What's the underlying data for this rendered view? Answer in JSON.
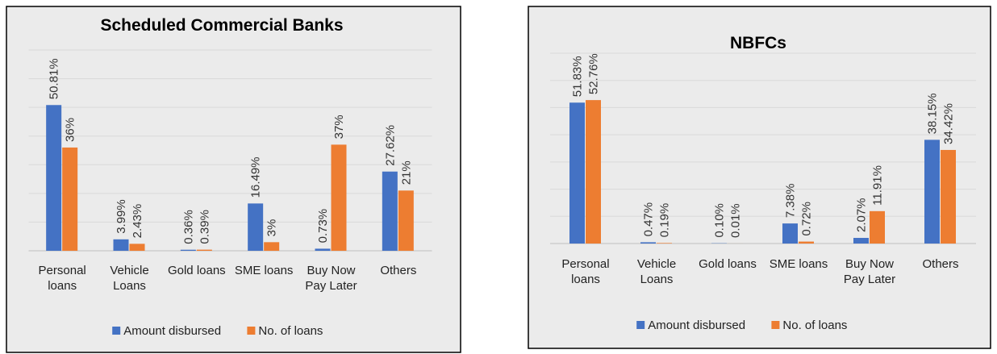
{
  "chart_data": [
    {
      "type": "bar",
      "title": "Scheduled Commercial Banks",
      "categories": [
        "Personal loans",
        "Vehicle Loans",
        "Gold loans",
        "SME loans",
        "Buy Now Pay Later",
        "Others"
      ],
      "series": [
        {
          "name": "Amount disbursed",
          "color": "#4472c4",
          "values": [
            50.81,
            3.99,
            0.36,
            16.49,
            0.73,
            27.62
          ],
          "value_labels": [
            "50.81%",
            "3.99%",
            "0.36%",
            "16.49%",
            "0.73%",
            "27.62%"
          ]
        },
        {
          "name": "No. of loans",
          "color": "#ed7d31",
          "values": [
            36,
            2.43,
            0.39,
            3,
            37,
            21
          ],
          "value_labels": [
            "36%",
            "2.43%",
            "0.39%",
            "3%",
            "37%",
            "21%"
          ]
        }
      ],
      "ylim": [
        0,
        70
      ],
      "yticks": [
        0,
        10,
        20,
        30,
        40,
        50,
        60,
        70
      ],
      "grid": true,
      "legend": "bottom"
    },
    {
      "type": "bar",
      "title": "NBFCs",
      "categories": [
        "Personal loans",
        "Vehicle Loans",
        "Gold loans",
        "SME loans",
        "Buy Now Pay Later",
        "Others"
      ],
      "series": [
        {
          "name": "Amount disbursed",
          "color": "#4472c4",
          "values": [
            51.83,
            0.47,
            0.1,
            7.38,
            2.07,
            38.15
          ],
          "value_labels": [
            "51.83%",
            "0.47%",
            "0.10%",
            "7.38%",
            "2.07%",
            "38.15%"
          ]
        },
        {
          "name": "No. of loans",
          "color": "#ed7d31",
          "values": [
            52.76,
            0.19,
            0.01,
            0.72,
            11.91,
            34.42
          ],
          "value_labels": [
            "52.76%",
            "0.19%",
            "0.01%",
            "0.72%",
            "11.91%",
            "34.42%"
          ]
        }
      ],
      "ylim": [
        0,
        70
      ],
      "yticks": [
        0,
        10,
        20,
        30,
        40,
        50,
        60,
        70
      ],
      "grid": true,
      "legend": "bottom"
    }
  ]
}
